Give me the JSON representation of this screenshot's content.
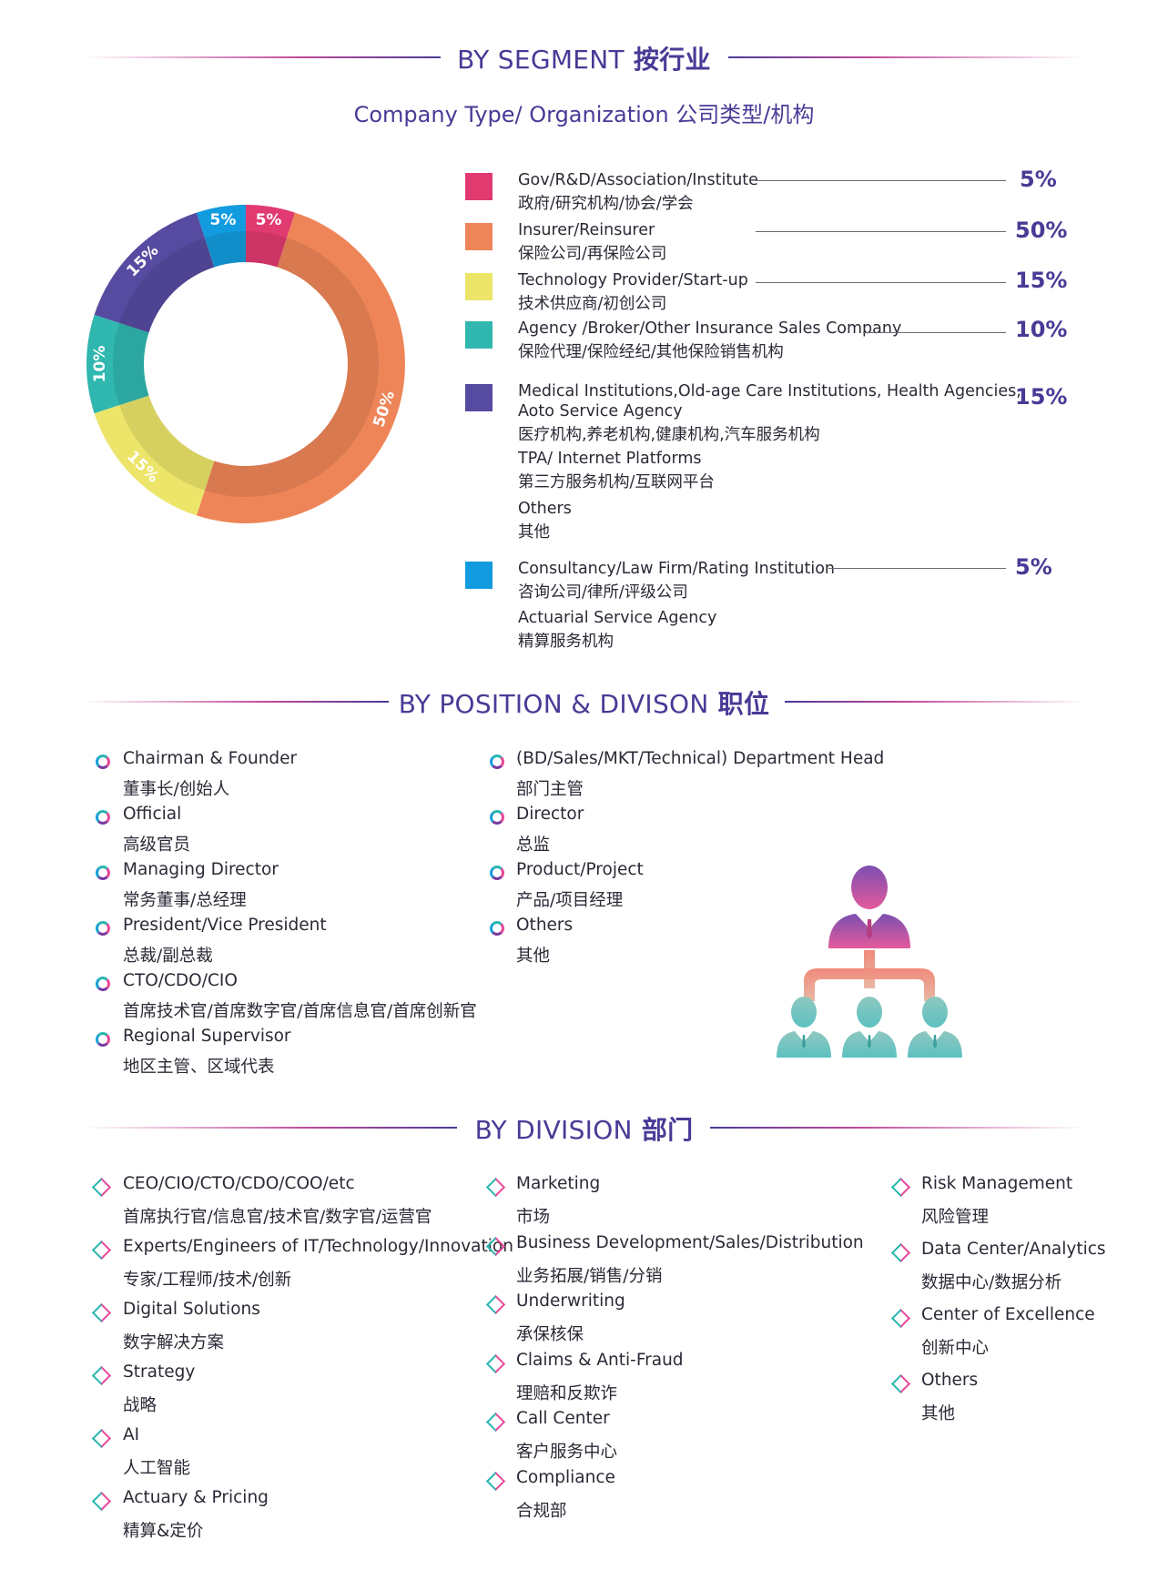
{
  "segment": {
    "title_en": "BY SEGMENT",
    "title_cn": "按行业",
    "subtitle": "Company Type/ Organization  公司类型/机构"
  },
  "chart_data": {
    "type": "pie",
    "donut": true,
    "slices": [
      {
        "label": "5%",
        "value": 5,
        "color": "#e03a70"
      },
      {
        "label": "50%",
        "value": 50,
        "color": "#ee8558"
      },
      {
        "label": "15%",
        "value": 15,
        "color": "#ece56a"
      },
      {
        "label": "10%",
        "value": 10,
        "color": "#30b7b0"
      },
      {
        "label": "15%",
        "value": 15,
        "color": "#564ba0"
      },
      {
        "label": "5%",
        "value": 5,
        "color": "#139bdf"
      }
    ]
  },
  "legend": [
    {
      "en": "Gov/R&D/Association/Institute",
      "cn": "政府/研究机构/协会/学会",
      "pct": "5%",
      "color": "#e03a70"
    },
    {
      "en": "Insurer/Reinsurer",
      "cn": "保险公司/再保险公司",
      "pct": "50%",
      "color": "#ee8558"
    },
    {
      "en": "Technology Provider/Start-up",
      "cn": "技术供应商/初创公司",
      "pct": "15%",
      "color": "#ece56a"
    },
    {
      "en": "Agency /Broker/Other Insurance Sales Company",
      "cn": "保险代理/保险经纪/其他保险销售机构",
      "pct": "10%",
      "color": "#30b7b0"
    },
    {
      "en": "Medical Institutions,Old-age Care Institutions, Health Agencies,",
      "en2": "Aoto Service Agency",
      "cn": "医疗机构,养老机构,健康机构,汽车服务机构",
      "pct": "15%",
      "color": "#564ba0",
      "extra": [
        {
          "en": "TPA/ Internet Platforms",
          "cn": "第三方服务机构/互联网平台"
        },
        {
          "en": "Others",
          "cn": "其他"
        }
      ]
    },
    {
      "en": "Consultancy/Law Firm/Rating Institution",
      "cn": "咨询公司/律所/评级公司",
      "pct": "5%",
      "color": "#139bdf",
      "extra": [
        {
          "en": "Actuarial Service Agency",
          "cn": "精算服务机构"
        }
      ]
    }
  ],
  "position": {
    "title_en": "BY POSITION & DIVISON",
    "title_cn": "职位",
    "left": [
      {
        "en": "Chairman & Founder",
        "cn": "董事长/创始人"
      },
      {
        "en": "Official",
        "cn": "高级官员"
      },
      {
        "en": "Managing Director",
        "cn": "常务董事/总经理"
      },
      {
        "en": "President/Vice President",
        "cn": "总裁/副总裁"
      },
      {
        "en": "CTO/CDO/CIO",
        "cn": "首席技术官/首席数字官/首席信息官/首席创新官"
      },
      {
        "en": "Regional Supervisor",
        "cn": "地区主管、区域代表"
      }
    ],
    "right": [
      {
        "en": "(BD/Sales/MKT/Technical) Department Head",
        "cn": "部门主管"
      },
      {
        "en": "Director",
        "cn": "总监"
      },
      {
        "en": "Product/Project",
        "cn": "产品/项目经理"
      },
      {
        "en": "Others",
        "cn": "其他"
      }
    ]
  },
  "division": {
    "title_en": "BY DIVISION",
    "title_cn": "部门",
    "col1": [
      {
        "en": "CEO/CIO/CTO/CDO/COO/etc",
        "cn": "首席执行官/信息官/技术官/数字官/运营官"
      },
      {
        "en": "Experts/Engineers of IT/Technology/Innovation",
        "cn": "专家/工程师/技术/创新"
      },
      {
        "en": "Digital Solutions",
        "cn": "数字解决方案"
      },
      {
        "en": "Strategy",
        "cn": "战略"
      },
      {
        "en": "AI",
        "cn": "人工智能"
      },
      {
        "en": "Actuary & Pricing",
        "cn": "精算&定价"
      }
    ],
    "col2": [
      {
        "en": "Marketing",
        "cn": "市场"
      },
      {
        "en": "Business Development/Sales/Distribution",
        "cn": "业务拓展/销售/分销"
      },
      {
        "en": "Underwriting",
        "cn": "承保核保"
      },
      {
        "en": "Claims & Anti-Fraud",
        "cn": "理赔和反欺诈"
      },
      {
        "en": "Call Center",
        "cn": "客户服务中心"
      },
      {
        "en": "Compliance",
        "cn": "合规部"
      }
    ],
    "col3": [
      {
        "en": "Risk Management",
        "cn": "风险管理"
      },
      {
        "en": "Data Center/Analytics",
        "cn": "数据中心/数据分析"
      },
      {
        "en": "Center of Excellence",
        "cn": "创新中心"
      },
      {
        "en": "Others",
        "cn": "其他"
      }
    ]
  },
  "icons": {
    "org_chart": "org-chart-icon",
    "bullet_ring": "ring-bullet-icon",
    "bullet_diamond": "diamond-bullet-icon"
  }
}
